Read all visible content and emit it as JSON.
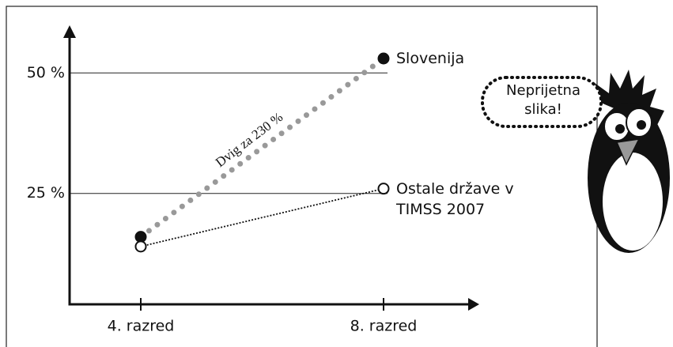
{
  "chart_data": {
    "type": "line",
    "categories": [
      "4. razred",
      "8. razred"
    ],
    "series": [
      {
        "name": "Slovenija",
        "color": "#999999",
        "values": [
          16,
          53
        ]
      },
      {
        "name": "Ostale države v TIMSS 2007",
        "color": "#111111",
        "values": [
          14,
          26
        ]
      }
    ],
    "ylim": [
      2,
      57
    ],
    "yticks": [
      {
        "value": 25,
        "label": "25 %"
      },
      {
        "value": 50,
        "label": "50 %"
      }
    ],
    "grid": true,
    "annotation": "Dvig za 230 %",
    "speech_bubble": "Neprijetna slika!"
  }
}
